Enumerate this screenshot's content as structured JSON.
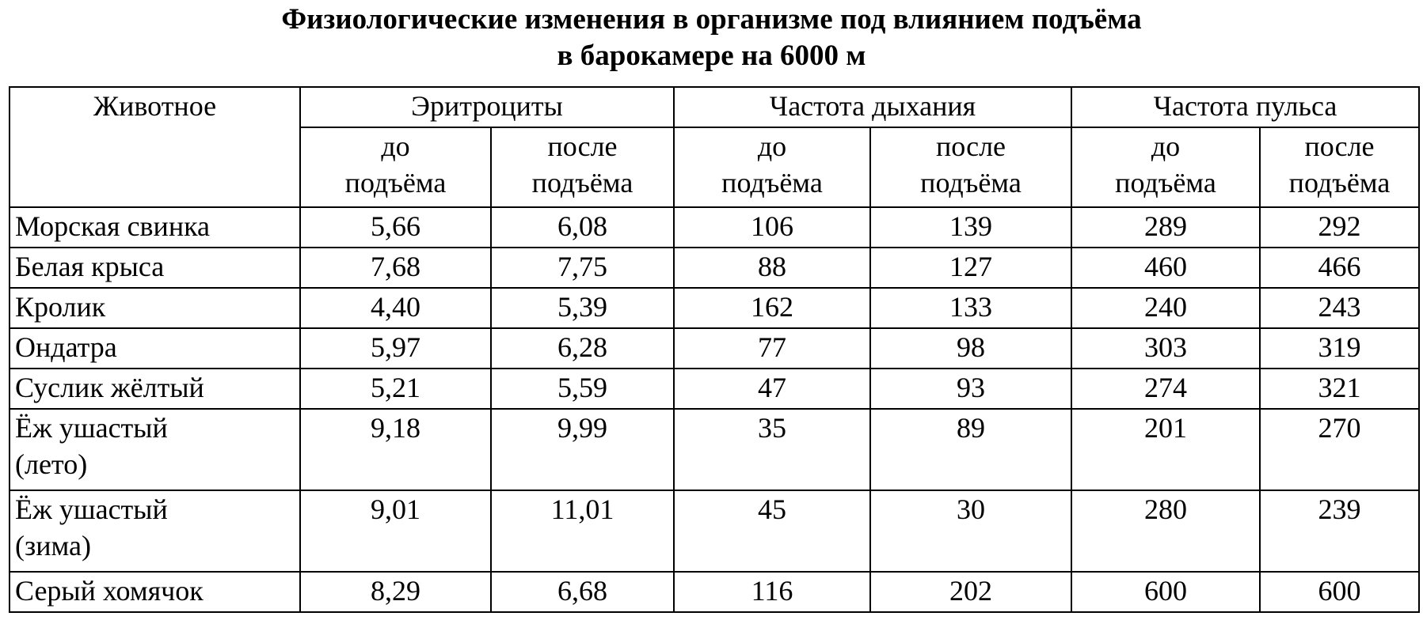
{
  "title": {
    "line1": "Физиологические изменения в организме под влиянием подъёма",
    "line2": "в барокамере на 6000 м"
  },
  "table": {
    "header": {
      "animal": "Животное",
      "groups": [
        "Эритроциты",
        "Частота дыхания",
        "Частота пульса"
      ],
      "before": [
        "до",
        "подъёма"
      ],
      "after": [
        "после",
        "подъёма"
      ]
    },
    "rows": [
      {
        "animal": [
          "Морская свинка"
        ],
        "values": [
          "5,66",
          "6,08",
          "106",
          "139",
          "289",
          "292"
        ]
      },
      {
        "animal": [
          "Белая крыса"
        ],
        "values": [
          "7,68",
          "7,75",
          "88",
          "127",
          "460",
          "466"
        ]
      },
      {
        "animal": [
          "Кролик"
        ],
        "values": [
          "4,40",
          "5,39",
          "162",
          "133",
          "240",
          "243"
        ]
      },
      {
        "animal": [
          "Ондатра"
        ],
        "values": [
          "5,97",
          "6,28",
          "77",
          "98",
          "303",
          "319"
        ]
      },
      {
        "animal": [
          "Суслик жёлтый"
        ],
        "values": [
          "5,21",
          "5,59",
          "47",
          "93",
          "274",
          "321"
        ]
      },
      {
        "animal": [
          "Ёж ушастый",
          "(лето)"
        ],
        "values": [
          "9,18",
          "9,99",
          "35",
          "89",
          "201",
          "270"
        ]
      },
      {
        "animal": [
          "Ёж ушастый",
          "(зима)"
        ],
        "values": [
          "9,01",
          "11,01",
          "45",
          "30",
          "280",
          "239"
        ]
      },
      {
        "animal": [
          "Серый хомячок"
        ],
        "values": [
          "8,29",
          "6,68",
          "116",
          "202",
          "600",
          "600"
        ]
      }
    ]
  }
}
